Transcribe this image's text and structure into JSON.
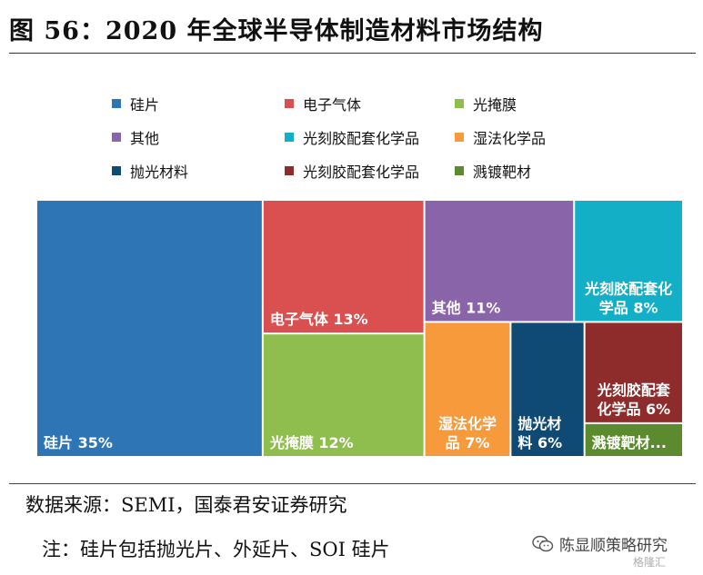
{
  "title": "图 56：2020 年全球半导体制造材料市场结构",
  "source": "数据来源：SEMI，国泰君安证券研究",
  "note": "注：硅片包括抛光片、外延片、SOI 硅片",
  "watermark": "陈显顺策略研究",
  "watermark_icon": "wechat-icon",
  "gelonghui_mark": "格隆汇",
  "chart_data": {
    "type": "treemap",
    "legend_position": "top",
    "series": [
      {
        "name": "硅片",
        "value": 35,
        "label": "硅片 35%",
        "color": "#2E75B6"
      },
      {
        "name": "电子气体",
        "value": 13,
        "label": "电子气体 13%",
        "color": "#DA4F4F"
      },
      {
        "name": "光掩膜",
        "value": 12,
        "label": "光掩膜 12%",
        "color": "#8FBE4F"
      },
      {
        "name": "其他",
        "value": 11,
        "label": "其他 11%",
        "color": "#8A64A9"
      },
      {
        "name": "光刻胶配套化学品",
        "value": 8,
        "label": "光刻胶配套化学品 8%",
        "color": "#12AFC6"
      },
      {
        "name": "湿法化学品",
        "value": 7,
        "label": "湿法化学品 7%",
        "color": "#F79A3C"
      },
      {
        "name": "抛光材料",
        "value": 6,
        "label": "抛光材料 6%",
        "color": "#0E4A73"
      },
      {
        "name": "光刻胶配套化学品",
        "value": 6,
        "label": "光刻胶配套化学品 6%",
        "color": "#8E2B2B"
      },
      {
        "name": "溅镀靶材",
        "value": 2,
        "label": "溅镀靶材...",
        "color": "#5C8A2E"
      }
    ]
  }
}
